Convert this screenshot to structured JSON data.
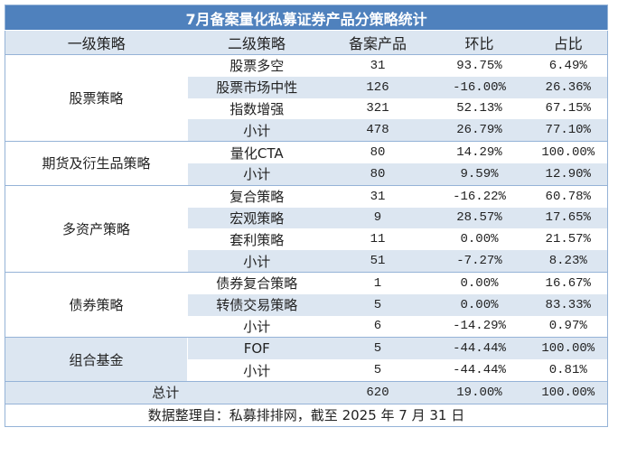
{
  "title": "7月备案量化私募证券产品分策略统计",
  "headers": [
    "一级策略",
    "二级策略",
    "备案产品",
    "环比",
    "占比"
  ],
  "groups": [
    {
      "name": "股票策略",
      "rows": [
        [
          "股票多空",
          "31",
          "93.75%",
          "6.49%"
        ],
        [
          "股票市场中性",
          "126",
          "-16.00%",
          "26.36%"
        ],
        [
          "指数增强",
          "321",
          "52.13%",
          "67.15%"
        ],
        [
          "小计",
          "478",
          "26.79%",
          "77.10%"
        ]
      ]
    },
    {
      "name": "期货及衍生品策略",
      "rows": [
        [
          "量化CTA",
          "80",
          "14.29%",
          "100.00%"
        ],
        [
          "小计",
          "80",
          "9.59%",
          "12.90%"
        ]
      ]
    },
    {
      "name": "多资产策略",
      "rows": [
        [
          "复合策略",
          "31",
          "-16.22%",
          "60.78%"
        ],
        [
          "宏观策略",
          "9",
          "28.57%",
          "17.65%"
        ],
        [
          "套利策略",
          "11",
          "0.00%",
          "21.57%"
        ],
        [
          "小计",
          "51",
          "-7.27%",
          "8.23%"
        ]
      ]
    },
    {
      "name": "债券策略",
      "rows": [
        [
          "债券复合策略",
          "1",
          "0.00%",
          "16.67%"
        ],
        [
          "转债交易策略",
          "5",
          "0.00%",
          "83.33%"
        ],
        [
          "小计",
          "6",
          "-14.29%",
          "0.97%"
        ]
      ]
    },
    {
      "name": "组合基金",
      "rows": [
        [
          "FOF",
          "5",
          "-44.44%",
          "100.00%"
        ],
        [
          "小计",
          "5",
          "-44.44%",
          "0.81%"
        ]
      ]
    }
  ],
  "total": {
    "label": "总计",
    "count": "620",
    "mom": "19.00%",
    "share": "100.00%"
  },
  "footer": "数据整理自：私募排排网，截至 2025 年 7 月 31 日",
  "colors": {
    "title_bg": "#4f81bd",
    "shade": "#dce6f1",
    "border": "#95b3d7"
  }
}
